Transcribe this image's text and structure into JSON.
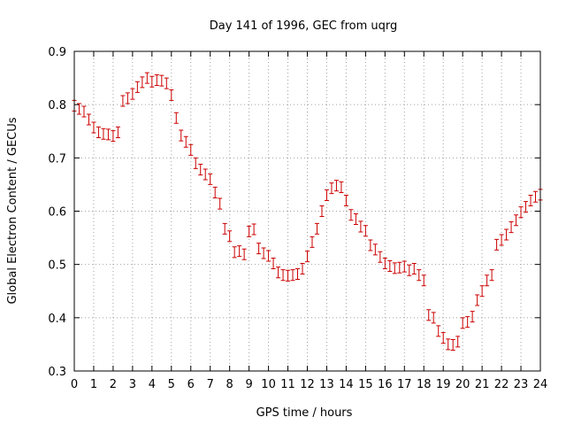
{
  "chart_data": {
    "type": "scatter",
    "title": "Day 141 of 1996, GEC from uqrg",
    "xlabel": "GPS time / hours",
    "ylabel": "Global Electron Content / GECUs",
    "xlim": [
      0,
      24
    ],
    "ylim": [
      0.3,
      0.9
    ],
    "x_ticks": [
      "0",
      "1",
      "2",
      "3",
      "4",
      "5",
      "6",
      "7",
      "8",
      "9",
      "10",
      "11",
      "12",
      "13",
      "14",
      "15",
      "16",
      "17",
      "18",
      "19",
      "20",
      "21",
      "22",
      "23",
      "24"
    ],
    "y_ticks": [
      "0.3",
      "0.4",
      "0.5",
      "0.6",
      "0.7",
      "0.8",
      "0.9"
    ],
    "grid": true,
    "error_bar": 0.01,
    "series_color": "#cc0000",
    "points": [
      [
        0.0,
        0.798
      ],
      [
        0.25,
        0.792
      ],
      [
        0.5,
        0.787
      ],
      [
        0.75,
        0.772
      ],
      [
        1.0,
        0.757
      ],
      [
        1.25,
        0.748
      ],
      [
        1.5,
        0.745
      ],
      [
        1.75,
        0.744
      ],
      [
        2.0,
        0.741
      ],
      [
        2.25,
        0.748
      ],
      [
        2.5,
        0.807
      ],
      [
        2.75,
        0.812
      ],
      [
        3.0,
        0.82
      ],
      [
        3.25,
        0.833
      ],
      [
        3.5,
        0.842
      ],
      [
        3.75,
        0.85
      ],
      [
        4.0,
        0.843
      ],
      [
        4.25,
        0.846
      ],
      [
        4.5,
        0.845
      ],
      [
        4.75,
        0.84
      ],
      [
        5.0,
        0.818
      ],
      [
        5.25,
        0.775
      ],
      [
        5.5,
        0.742
      ],
      [
        5.75,
        0.73
      ],
      [
        6.0,
        0.715
      ],
      [
        6.25,
        0.69
      ],
      [
        6.5,
        0.678
      ],
      [
        6.75,
        0.669
      ],
      [
        7.0,
        0.66
      ],
      [
        7.25,
        0.635
      ],
      [
        7.5,
        0.614
      ],
      [
        7.75,
        0.567
      ],
      [
        8.0,
        0.553
      ],
      [
        8.25,
        0.523
      ],
      [
        8.5,
        0.525
      ],
      [
        8.75,
        0.519
      ],
      [
        9.0,
        0.562
      ],
      [
        9.25,
        0.566
      ],
      [
        9.5,
        0.53
      ],
      [
        9.75,
        0.521
      ],
      [
        10.0,
        0.516
      ],
      [
        10.25,
        0.502
      ],
      [
        10.5,
        0.485
      ],
      [
        10.75,
        0.48
      ],
      [
        11.0,
        0.479
      ],
      [
        11.25,
        0.48
      ],
      [
        11.5,
        0.482
      ],
      [
        11.75,
        0.492
      ],
      [
        12.0,
        0.515
      ],
      [
        12.25,
        0.542
      ],
      [
        12.5,
        0.567
      ],
      [
        12.75,
        0.6
      ],
      [
        13.0,
        0.63
      ],
      [
        13.25,
        0.643
      ],
      [
        13.5,
        0.648
      ],
      [
        13.75,
        0.645
      ],
      [
        14.0,
        0.62
      ],
      [
        14.25,
        0.593
      ],
      [
        14.5,
        0.585
      ],
      [
        14.75,
        0.571
      ],
      [
        15.0,
        0.563
      ],
      [
        15.25,
        0.536
      ],
      [
        15.5,
        0.528
      ],
      [
        15.75,
        0.514
      ],
      [
        16.0,
        0.502
      ],
      [
        16.25,
        0.497
      ],
      [
        16.5,
        0.493
      ],
      [
        16.75,
        0.494
      ],
      [
        17.0,
        0.496
      ],
      [
        17.25,
        0.489
      ],
      [
        17.5,
        0.492
      ],
      [
        17.75,
        0.48
      ],
      [
        18.0,
        0.47
      ],
      [
        18.25,
        0.405
      ],
      [
        18.5,
        0.4
      ],
      [
        18.75,
        0.375
      ],
      [
        19.0,
        0.362
      ],
      [
        19.25,
        0.35
      ],
      [
        19.5,
        0.349
      ],
      [
        19.75,
        0.355
      ],
      [
        20.0,
        0.39
      ],
      [
        20.25,
        0.392
      ],
      [
        20.5,
        0.402
      ],
      [
        20.75,
        0.433
      ],
      [
        21.0,
        0.45
      ],
      [
        21.25,
        0.47
      ],
      [
        21.5,
        0.48
      ],
      [
        21.75,
        0.537
      ],
      [
        22.0,
        0.546
      ],
      [
        22.25,
        0.556
      ],
      [
        22.5,
        0.57
      ],
      [
        22.75,
        0.583
      ],
      [
        23.0,
        0.598
      ],
      [
        23.25,
        0.608
      ],
      [
        23.5,
        0.62
      ],
      [
        23.75,
        0.627
      ],
      [
        24.0,
        0.631
      ]
    ]
  }
}
